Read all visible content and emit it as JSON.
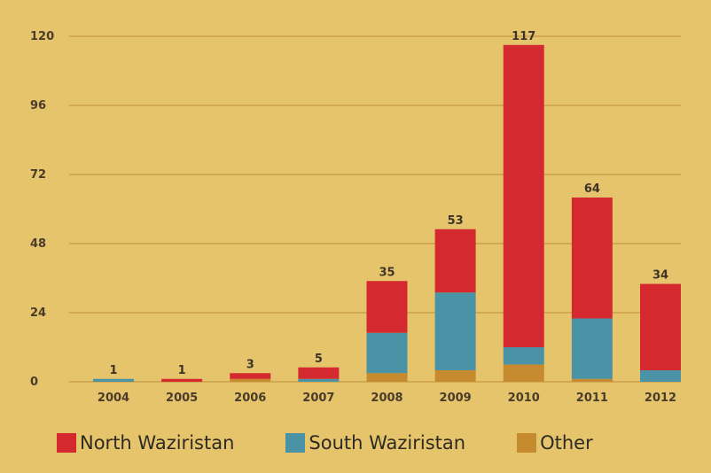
{
  "colors": {
    "background": "#e6c46b",
    "gridline": "#c9a04a",
    "axis_text": "#4a3b2a"
  },
  "chart_data": {
    "type": "bar",
    "stacked": true,
    "categories": [
      "2004",
      "2005",
      "2006",
      "2007",
      "2008",
      "2009",
      "2010",
      "2011",
      "2012"
    ],
    "totals": [
      1,
      1,
      3,
      5,
      35,
      53,
      117,
      64,
      34
    ],
    "series": [
      {
        "name": "North Waziristan",
        "color": "#d42a2f",
        "values": [
          0,
          1,
          2,
          4,
          18,
          22,
          105,
          42,
          30
        ]
      },
      {
        "name": "South Waziristan",
        "color": "#4a93a6",
        "values": [
          1,
          0,
          0,
          1,
          14,
          27,
          6,
          21,
          4
        ]
      },
      {
        "name": "Other",
        "color": "#c58b2e",
        "values": [
          0,
          0,
          1,
          0,
          3,
          4,
          6,
          1,
          0
        ]
      }
    ],
    "yticks": [
      0,
      24,
      48,
      72,
      96,
      120
    ],
    "ylim": [
      0,
      120
    ],
    "grid": true,
    "legend_position": "bottom-left"
  }
}
